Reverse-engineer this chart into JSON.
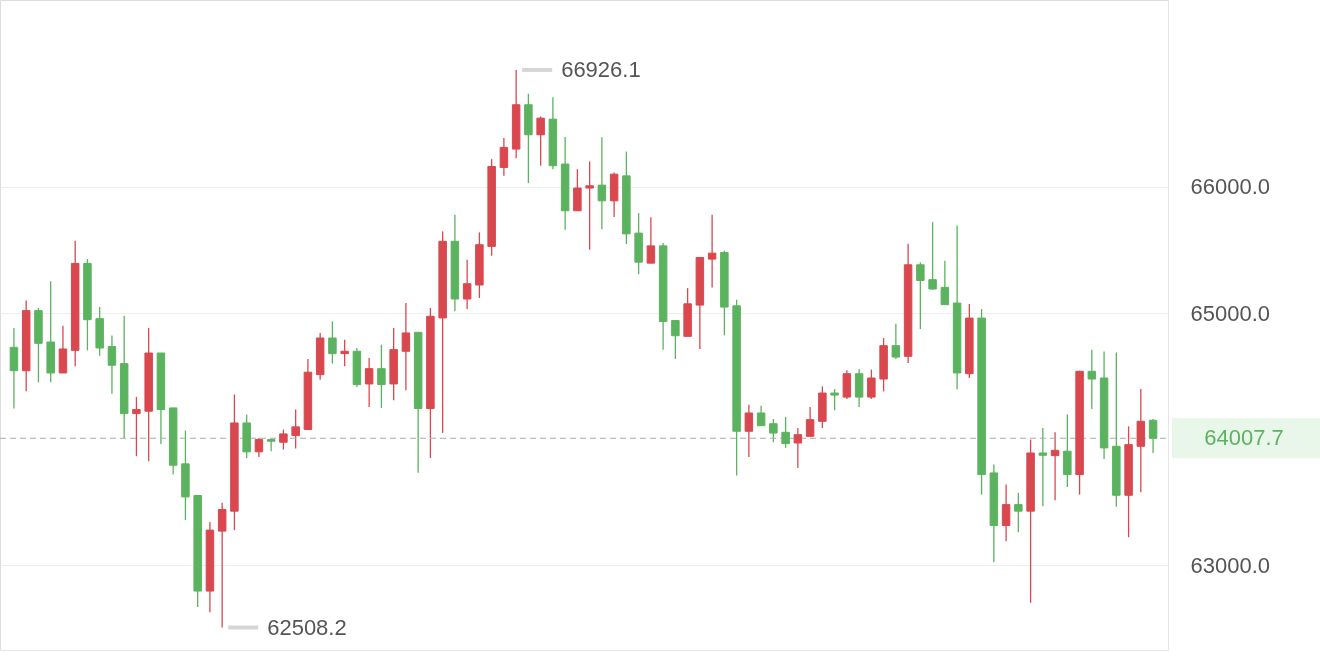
{
  "chart_data": {
    "type": "candlestick",
    "categories": [
      null,
      null,
      null,
      null,
      null,
      null,
      null,
      null,
      null,
      null,
      null,
      null,
      null,
      null,
      null,
      null,
      null,
      null,
      null,
      null,
      null,
      null,
      null,
      null,
      null,
      null,
      null,
      null,
      null,
      null,
      null,
      null,
      null,
      null,
      null,
      null,
      null,
      null,
      null,
      null,
      null,
      null,
      null,
      null,
      null,
      null,
      null,
      null,
      null,
      null,
      null,
      null,
      null,
      null,
      null,
      null,
      null,
      null,
      null,
      null,
      null,
      null,
      null,
      null,
      null,
      null,
      null,
      null,
      null,
      null,
      null,
      null,
      null,
      null,
      null,
      null,
      null,
      null,
      null,
      null,
      null,
      null,
      null,
      null,
      null,
      null,
      null,
      null,
      null,
      null,
      null,
      null,
      null,
      null
    ],
    "ohlc": [
      [
        64728,
        64881,
        64243,
        64543
      ],
      [
        64543,
        65100,
        64380,
        65019
      ],
      [
        65019,
        65040,
        64451,
        64760
      ],
      [
        64770,
        65251,
        64451,
        64525
      ],
      [
        64525,
        64900,
        64525,
        64715
      ],
      [
        64704,
        65573,
        64578,
        65393
      ],
      [
        65393,
        65428,
        64704,
        64947
      ],
      [
        64955,
        65048,
        64662,
        64723
      ],
      [
        64734,
        64821,
        64361,
        64586
      ],
      [
        64599,
        64979,
        64010,
        64203
      ],
      [
        64203,
        64335,
        63865,
        64235
      ],
      [
        64222,
        64881,
        63826,
        64683
      ],
      [
        64683,
        64683,
        63963,
        64235
      ],
      [
        64248,
        64248,
        63720,
        63794
      ],
      [
        63805,
        64069,
        63359,
        63543
      ],
      [
        63554,
        63554,
        62670,
        62797
      ],
      [
        62797,
        63345,
        62630,
        63280
      ],
      [
        63272,
        63496,
        62508.2,
        63443
      ],
      [
        63430,
        64354,
        63280,
        64129
      ],
      [
        64129,
        64195,
        63852,
        63900
      ],
      [
        63900,
        64010,
        63860,
        63997
      ],
      [
        63997,
        64005,
        63905,
        63984
      ],
      [
        63976,
        64076,
        63918,
        64042
      ],
      [
        64029,
        64235,
        63926,
        64098
      ],
      [
        64077,
        64636,
        64077,
        64531
      ],
      [
        64512,
        64842,
        64472,
        64802
      ],
      [
        64802,
        64934,
        64599,
        64678
      ],
      [
        64678,
        64789,
        64578,
        64697
      ],
      [
        64697,
        64723,
        64414,
        64433
      ],
      [
        64438,
        64644,
        64256,
        64559
      ],
      [
        64559,
        64749,
        64248,
        64433
      ],
      [
        64438,
        64881,
        64309,
        64710
      ],
      [
        64697,
        65079,
        64388,
        64842
      ],
      [
        64847,
        64847,
        63734,
        64243
      ],
      [
        64243,
        65040,
        63852,
        64974
      ],
      [
        64961,
        65647,
        64050,
        65568
      ],
      [
        65568,
        65779,
        65013,
        65111
      ],
      [
        65111,
        65422,
        65032,
        65232
      ],
      [
        65222,
        65639,
        65119,
        65541
      ],
      [
        65528,
        66219,
        65454,
        66161
      ],
      [
        66153,
        66386,
        66087,
        66312
      ],
      [
        66299,
        66926.1,
        66227,
        66650
      ],
      [
        66650,
        66737,
        66029,
        66412
      ],
      [
        66412,
        66557,
        66167,
        66544
      ],
      [
        66536,
        66710,
        66140,
        66167
      ],
      [
        66180,
        66394,
        65660,
        65810
      ],
      [
        65810,
        66140,
        65810,
        65990
      ],
      [
        65990,
        66201,
        65502,
        66008
      ],
      [
        66013,
        66393,
        65664,
        65889
      ],
      [
        65889,
        66113,
        65760,
        66100
      ],
      [
        66087,
        66279,
        65546,
        65627
      ],
      [
        65633,
        65791,
        65308,
        65403
      ],
      [
        65395,
        65759,
        65395,
        65532
      ],
      [
        65532,
        65554,
        64709,
        64933
      ],
      [
        64941,
        64941,
        64635,
        64820
      ],
      [
        64815,
        65197,
        64815,
        65073
      ],
      [
        65063,
        65443,
        64714,
        65440
      ],
      [
        65427,
        65778,
        65203,
        65474
      ],
      [
        65480,
        65493,
        64823,
        65047
      ],
      [
        65057,
        65105,
        63712,
        64063
      ],
      [
        64063,
        64274,
        63859,
        64208
      ],
      [
        64208,
        64266,
        64107,
        64107
      ],
      [
        64123,
        64160,
        63976,
        64049
      ],
      [
        64055,
        64176,
        63931,
        63965
      ],
      [
        63970,
        64089,
        63772,
        64036
      ],
      [
        64023,
        64255,
        64023,
        64155
      ],
      [
        64142,
        64419,
        64089,
        64366
      ],
      [
        64366,
        64398,
        64229,
        64350
      ],
      [
        64334,
        64546,
        64319,
        64519
      ],
      [
        64519,
        64556,
        64255,
        64334
      ],
      [
        64334,
        64551,
        64319,
        64485
      ],
      [
        64477,
        64801,
        64379,
        64741
      ],
      [
        64741,
        64915,
        64636,
        64651
      ],
      [
        64657,
        65549,
        64604,
        65382
      ],
      [
        65382,
        65401,
        64873,
        65258
      ],
      [
        65264,
        65720,
        65185,
        65190
      ],
      [
        65203,
        65414,
        65066,
        65066
      ],
      [
        65079,
        65694,
        64393,
        64525
      ],
      [
        64519,
        65071,
        64485,
        64960
      ],
      [
        64960,
        65031,
        63561,
        63720
      ],
      [
        63733,
        63799,
        63026,
        63316
      ],
      [
        63316,
        63641,
        63192,
        63482
      ],
      [
        63482,
        63575,
        63263,
        63430
      ],
      [
        63430,
        63997,
        62704,
        63891
      ],
      [
        63891,
        64089,
        63469,
        63873
      ],
      [
        63870,
        64055,
        63517,
        63912
      ],
      [
        63905,
        64195,
        63622,
        63720
      ],
      [
        63720,
        64543,
        63561,
        64538
      ],
      [
        64538,
        64709,
        64240,
        64477
      ],
      [
        64485,
        64696,
        63844,
        63931
      ],
      [
        63944,
        64688,
        63464,
        63556
      ],
      [
        63556,
        64102,
        63224,
        63957
      ],
      [
        63944,
        64398,
        63580,
        64142
      ],
      [
        64150,
        64160,
        63890,
        64007.7
      ]
    ],
    "colors": [
      "#5cb35f",
      "#d9484f",
      "#5cb35f",
      "#5cb35f",
      "#d9484f",
      "#d9484f",
      "#5cb35f",
      "#5cb35f",
      "#5cb35f",
      "#5cb35f",
      "#d9484f",
      "#d9484f",
      "#5cb35f",
      "#5cb35f",
      "#5cb35f",
      "#5cb35f",
      "#d9484f",
      "#d9484f",
      "#d9484f",
      "#5cb35f",
      "#d9484f",
      "#5cb35f",
      "#d9484f",
      "#d9484f",
      "#d9484f",
      "#d9484f",
      "#5cb35f",
      "#d9484f",
      "#5cb35f",
      "#d9484f",
      "#5cb35f",
      "#d9484f",
      "#d9484f",
      "#5cb35f",
      "#d9484f",
      "#d9484f",
      "#5cb35f",
      "#d9484f",
      "#d9484f",
      "#d9484f",
      "#d9484f",
      "#d9484f",
      "#5cb35f",
      "#d9484f",
      "#5cb35f",
      "#5cb35f",
      "#d9484f",
      "#d9484f",
      "#5cb35f",
      "#d9484f",
      "#5cb35f",
      "#5cb35f",
      "#d9484f",
      "#5cb35f",
      "#5cb35f",
      "#d9484f",
      "#d9484f",
      "#d9484f",
      "#5cb35f",
      "#5cb35f",
      "#d9484f",
      "#5cb35f",
      "#5cb35f",
      "#5cb35f",
      "#d9484f",
      "#d9484f",
      "#d9484f",
      "#5cb35f",
      "#d9484f",
      "#5cb35f",
      "#d9484f",
      "#d9484f",
      "#5cb35f",
      "#d9484f",
      "#5cb35f",
      "#5cb35f",
      "#5cb35f",
      "#5cb35f",
      "#d9484f",
      "#5cb35f",
      "#5cb35f",
      "#d9484f",
      "#5cb35f",
      "#d9484f",
      "#5cb35f",
      "#d9484f",
      "#5cb35f",
      "#d9484f",
      "#5cb35f",
      "#5cb35f",
      "#5cb35f",
      "#d9484f",
      "#d9484f",
      "#5cb35f"
    ],
    "ylim": [
      62330,
      67480
    ],
    "yticks": [
      {
        "value": 63000,
        "label": "63000.0"
      },
      {
        "value": 65000,
        "label": "65000.0"
      },
      {
        "value": 66000,
        "label": "66000.0"
      }
    ],
    "grid": "y",
    "ref_lines": [
      {
        "axis": "y",
        "value": 64007.7,
        "label": "64007.7",
        "color": "#aaaaaa",
        "line_style": "dashed"
      }
    ],
    "annotations": [
      "66926.1",
      "62508.2"
    ]
  }
}
